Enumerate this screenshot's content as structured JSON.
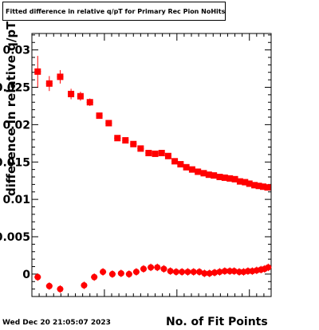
{
  "title": "Fitted difference in relative q/pT for Primary Rec Pion NoHits",
  "timestamp": "Wed Dec 20 21:05:07 2023",
  "chart_data": {
    "type": "scatter",
    "title": "Fitted difference in relative q/pT for Primary Rec Pion NoHits",
    "xlabel": "No. of Fit Points",
    "ylabel": "difference in relative q/pT",
    "ylim": [
      -0.003,
      0.0322
    ],
    "xlim": [
      0,
      33
    ],
    "grid": false,
    "y_ticks": [
      {
        "value": 0,
        "label": "0"
      },
      {
        "value": 0.005,
        "label": "0.005"
      },
      {
        "value": 0.01,
        "label": "0.01"
      },
      {
        "value": 0.015,
        "label": "0.015"
      },
      {
        "value": 0.02,
        "label": "0.02"
      },
      {
        "value": 0.025,
        "label": "0.025"
      },
      {
        "value": 0.03,
        "label": "0.03"
      }
    ],
    "x_major_ticks": [
      10,
      20,
      30
    ],
    "series": [
      {
        "marker": "square",
        "color": "#ff0000",
        "x": [
          0.8,
          2.4,
          3.9,
          5.4,
          6.7,
          8.0,
          9.3,
          10.6,
          11.8,
          12.9,
          14.0,
          15.0,
          16.1,
          17.0,
          17.9,
          18.8,
          19.7,
          20.5,
          21.3,
          22.1,
          22.9,
          23.7,
          24.4,
          25.1,
          25.9,
          26.6,
          27.3,
          28.0,
          28.7,
          29.4,
          30.0,
          30.7,
          31.3,
          31.9,
          32.5
        ],
        "y": [
          0.0271,
          0.0255,
          0.0264,
          0.0241,
          0.0238,
          0.023,
          0.0212,
          0.0202,
          0.0182,
          0.0179,
          0.0174,
          0.0168,
          0.0162,
          0.0161,
          0.0162,
          0.0158,
          0.0151,
          0.0147,
          0.0143,
          0.014,
          0.0137,
          0.0135,
          0.0133,
          0.0132,
          0.013,
          0.0129,
          0.0128,
          0.0127,
          0.0124,
          0.0123,
          0.0121,
          0.0119,
          0.0118,
          0.0117,
          0.0116
        ],
        "yerr": [
          0.0021,
          0.001,
          0.0009,
          0.0007,
          0.0006,
          0.0005,
          0.0004,
          0.0004,
          0.0003,
          0.0003,
          0.0003,
          0.0003,
          0.0002,
          0.0002,
          0.0002,
          0.0002,
          0.0002,
          0.0002,
          0.0002,
          0.0002,
          0.0002,
          0.0002,
          0.0002,
          0.0002,
          0.0002,
          0.0002,
          0.0002,
          0.0002,
          0.0002,
          0.0002,
          0.0002,
          0.0002,
          0.0002,
          0.0002,
          0.0002
        ]
      },
      {
        "marker": "circle",
        "color": "#ff0000",
        "x": [
          0.8,
          2.4,
          3.9,
          7.2,
          8.6,
          9.8,
          11.1,
          12.3,
          13.4,
          14.4,
          15.4,
          16.4,
          17.3,
          18.2,
          19.1,
          19.9,
          20.7,
          21.5,
          22.3,
          23.1,
          23.8,
          24.5,
          25.2,
          25.9,
          26.6,
          27.3,
          27.9,
          28.6,
          29.2,
          29.8,
          30.4,
          31.0,
          31.6,
          32.1,
          32.6
        ],
        "y": [
          -0.0004,
          -0.0016,
          -0.002,
          -0.0015,
          -0.0004,
          0.0003,
          0.0,
          0.0001,
          0.0,
          0.0003,
          0.0007,
          0.0009,
          0.0009,
          0.0007,
          0.0004,
          0.0003,
          0.0003,
          0.0003,
          0.0003,
          0.0003,
          0.0001,
          0.0001,
          0.0002,
          0.0003,
          0.0004,
          0.0004,
          0.0004,
          0.0003,
          0.0003,
          0.0004,
          0.0004,
          0.0005,
          0.0006,
          0.0007,
          0.0009
        ]
      }
    ]
  }
}
